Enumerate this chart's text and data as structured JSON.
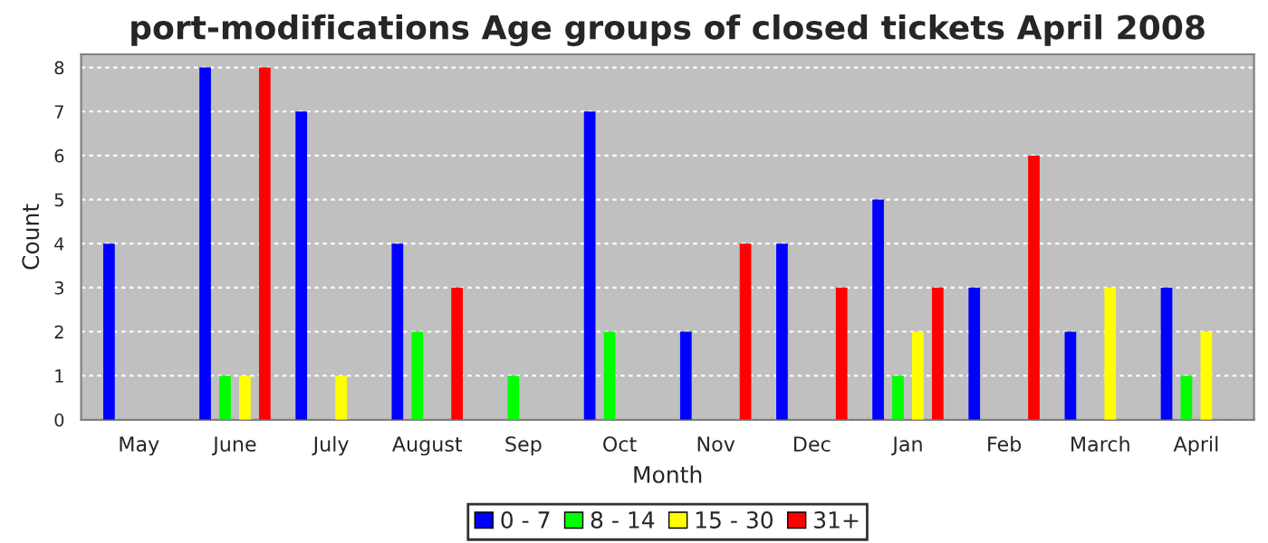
{
  "chart_data": {
    "type": "bar",
    "title": "port-modifications Age groups of closed tickets April 2008",
    "xlabel": "Month",
    "ylabel": "Count",
    "categories": [
      "May",
      "June",
      "July",
      "August",
      "Sep",
      "Oct",
      "Nov",
      "Dec",
      "Jan",
      "Feb",
      "March",
      "April"
    ],
    "series": [
      {
        "name": "0 - 7",
        "color": "#0000ff",
        "values": [
          4,
          8,
          7,
          4,
          null,
          7,
          2,
          4,
          5,
          3,
          2,
          3
        ]
      },
      {
        "name": "8 - 14",
        "color": "#00ff00",
        "values": [
          null,
          1,
          null,
          2,
          1,
          2,
          null,
          null,
          1,
          null,
          null,
          1
        ]
      },
      {
        "name": "15 - 30",
        "color": "#ffff00",
        "values": [
          null,
          1,
          1,
          null,
          null,
          null,
          null,
          null,
          2,
          null,
          3,
          2
        ]
      },
      {
        "name": "31+",
        "color": "#ff0000",
        "values": [
          null,
          8,
          null,
          3,
          null,
          null,
          4,
          3,
          3,
          6,
          null,
          null
        ]
      }
    ],
    "ylim": [
      0,
      8.3
    ],
    "yticks": [
      0,
      1,
      2,
      3,
      4,
      5,
      6,
      7,
      8
    ],
    "grid": "y",
    "legend": "bottom"
  }
}
